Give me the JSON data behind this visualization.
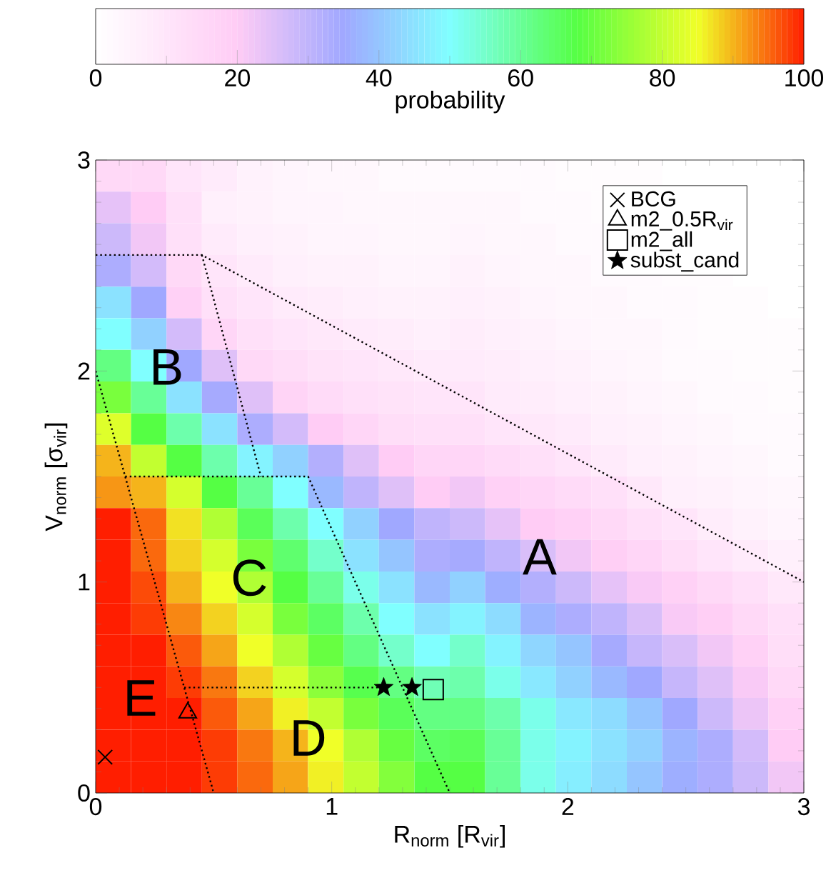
{
  "chart_data": {
    "type": "heatmap",
    "xlabel": "R$_{norm}$ [R$_{vir}$]",
    "ylabel": "V$_{norm}$ [σ$_{vir}$]",
    "clabel": "probability",
    "x": [
      0.075,
      0.225,
      0.375,
      0.525,
      0.675,
      0.825,
      0.975,
      1.125,
      1.275,
      1.425,
      1.575,
      1.725,
      1.875,
      2.025,
      2.175,
      2.325,
      2.475,
      2.625,
      2.775,
      2.925
    ],
    "y": [
      2.925,
      2.775,
      2.625,
      2.475,
      2.325,
      2.175,
      2.025,
      1.875,
      1.725,
      1.575,
      1.425,
      1.275,
      1.125,
      0.975,
      0.825,
      0.675,
      0.525,
      0.375,
      0.225,
      0.075
    ],
    "cells": [
      [
        15,
        15,
        10,
        8,
        5,
        4,
        3,
        3,
        2,
        2,
        2,
        2,
        2,
        1,
        1,
        1,
        0,
        0,
        0,
        0
      ],
      [
        24,
        20,
        12,
        6,
        5,
        4,
        4,
        3,
        3,
        3,
        3,
        3,
        2,
        2,
        1,
        1,
        1,
        0,
        0,
        0
      ],
      [
        28,
        22,
        12,
        8,
        6,
        5,
        4,
        4,
        3,
        3,
        4,
        3,
        3,
        2,
        2,
        1,
        1,
        1,
        0,
        0
      ],
      [
        33,
        27,
        15,
        10,
        8,
        6,
        5,
        5,
        4,
        4,
        5,
        4,
        3,
        3,
        2,
        2,
        1,
        1,
        0,
        0
      ],
      [
        45,
        35,
        18,
        12,
        10,
        8,
        7,
        6,
        5,
        5,
        6,
        5,
        4,
        3,
        3,
        2,
        2,
        1,
        1,
        0
      ],
      [
        50,
        42,
        27,
        16,
        12,
        10,
        9,
        8,
        7,
        6,
        7,
        6,
        5,
        4,
        3,
        3,
        2,
        1,
        1,
        1
      ],
      [
        62,
        50,
        35,
        25,
        15,
        13,
        11,
        10,
        9,
        8,
        8,
        7,
        6,
        5,
        4,
        3,
        2,
        2,
        1,
        1
      ],
      [
        72,
        60,
        45,
        34,
        25,
        17,
        14,
        12,
        11,
        10,
        10,
        8,
        7,
        6,
        5,
        4,
        3,
        2,
        2,
        1
      ],
      [
        83,
        68,
        58,
        45,
        33,
        27,
        20,
        16,
        13,
        12,
        12,
        10,
        9,
        8,
        6,
        5,
        4,
        3,
        2,
        2
      ],
      [
        90,
        80,
        68,
        58,
        48,
        42,
        32,
        25,
        20,
        16,
        16,
        14,
        12,
        10,
        8,
        6,
        5,
        4,
        3,
        2
      ],
      [
        92,
        90,
        82,
        68,
        60,
        50,
        38,
        30,
        25,
        20,
        22,
        18,
        16,
        14,
        12,
        9,
        6,
        5,
        4,
        3
      ],
      [
        100,
        95,
        87,
        78,
        66,
        58,
        50,
        42,
        35,
        30,
        28,
        24,
        20,
        18,
        15,
        12,
        10,
        7,
        5,
        4
      ],
      [
        100,
        95,
        88,
        82,
        72,
        64,
        55,
        45,
        40,
        33,
        34,
        30,
        26,
        22,
        19,
        16,
        13,
        10,
        8,
        6
      ],
      [
        100,
        97,
        90,
        85,
        78,
        68,
        60,
        52,
        45,
        38,
        42,
        36,
        32,
        28,
        24,
        21,
        18,
        15,
        12,
        9
      ],
      [
        100,
        98,
        93,
        88,
        82,
        72,
        65,
        58,
        50,
        45,
        48,
        44,
        37,
        33,
        30,
        26,
        21,
        19,
        15,
        12
      ],
      [
        100,
        100,
        96,
        91,
        85,
        78,
        70,
        62,
        55,
        50,
        55,
        48,
        43,
        40,
        34,
        29,
        26,
        22,
        18,
        13
      ],
      [
        100,
        100,
        98,
        94,
        88,
        82,
        74,
        67,
        62,
        57,
        58,
        52,
        46,
        42,
        38,
        35,
        29,
        25,
        21,
        15
      ],
      [
        100,
        100,
        100,
        96,
        91,
        86,
        80,
        72,
        66,
        62,
        62,
        58,
        52,
        46,
        44,
        40,
        35,
        28,
        23,
        18
      ],
      [
        100,
        100,
        100,
        98,
        94,
        90,
        85,
        78,
        70,
        65,
        66,
        60,
        52,
        48,
        45,
        42,
        37,
        33,
        27,
        20
      ],
      [
        100,
        100,
        100,
        98,
        95,
        91,
        86,
        80,
        73,
        68,
        68,
        60,
        52,
        47,
        44,
        40,
        36,
        33,
        28,
        22
      ]
    ],
    "clim": [
      0,
      100
    ],
    "cticks": [
      0,
      20,
      40,
      60,
      80,
      100
    ],
    "xlim": [
      0,
      3
    ],
    "ylim": [
      0,
      3
    ],
    "xticks": [
      0,
      1,
      2,
      3
    ],
    "yticks": [
      0,
      1,
      2,
      3
    ],
    "legend": "top right",
    "series": [
      {
        "type": "line",
        "x": [
          0,
          0.45,
          3
        ],
        "values": [
          2.55,
          2.55,
          1.0
        ],
        "color": "#000000",
        "line_style": "dotted"
      },
      {
        "type": "line",
        "x": [
          0.45,
          0.7
        ],
        "values": [
          2.55,
          1.5
        ],
        "color": "#000000",
        "line_style": "dotted"
      },
      {
        "type": "line",
        "x": [
          0,
          0.5
        ],
        "values": [
          2.0,
          0
        ],
        "color": "#000000",
        "line_style": "dotted"
      },
      {
        "type": "line",
        "x": [
          0.125,
          0.9,
          1.5
        ],
        "values": [
          1.5,
          1.5,
          0
        ],
        "color": "#000000",
        "line_style": "dotted"
      },
      {
        "type": "line",
        "x": [
          0.375,
          1.21
        ],
        "values": [
          0.5,
          0.5
        ],
        "color": "#000000",
        "line_style": "dotted"
      },
      {
        "type": "scatter",
        "name": "BCG",
        "x": [
          0.04
        ],
        "values": [
          0.17
        ],
        "color": "#000000",
        "marker": "cross"
      },
      {
        "type": "scatter",
        "name": "m2_0.5R$_{vir}$",
        "x": [
          0.39
        ],
        "values": [
          0.38
        ],
        "color": "#000000",
        "marker": "triangle"
      },
      {
        "type": "scatter",
        "name": "m2_all",
        "x": [
          1.43
        ],
        "values": [
          0.49
        ],
        "color": "#000000",
        "marker": "square"
      },
      {
        "type": "scatter",
        "name": "subst_cand",
        "x": [
          1.22,
          1.34
        ],
        "values": [
          0.5,
          0.5
        ],
        "color": "#000000",
        "marker": "star"
      }
    ],
    "annotations": [
      "A",
      "B",
      "C",
      "D",
      "E"
    ]
  }
}
